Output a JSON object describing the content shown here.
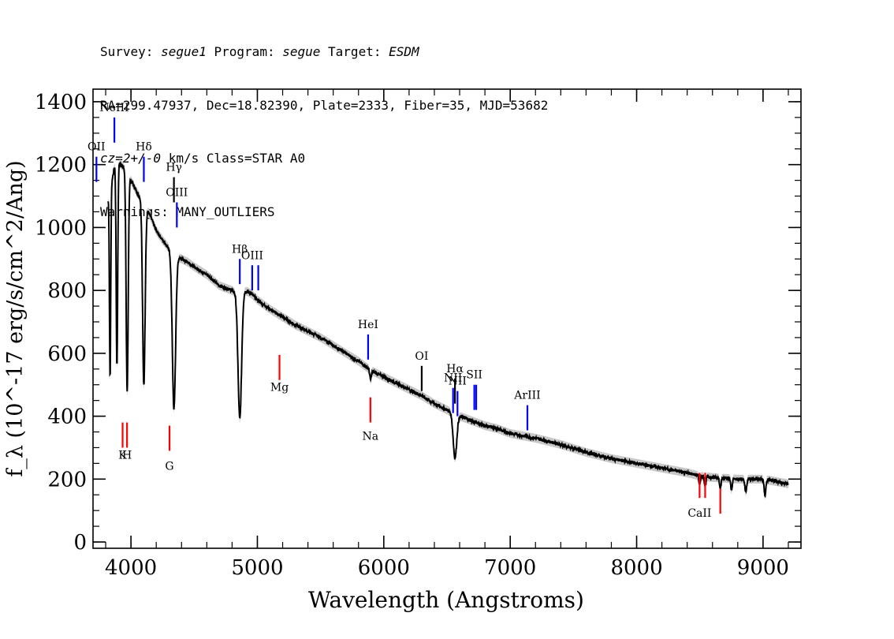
{
  "header": {
    "survey_label": "Survey:",
    "survey": "segue1",
    "program_label": "Program:",
    "program": "segue",
    "target_label": "Target:",
    "target": "ESDM",
    "line2": "RA=299.47937, Dec=18.82390, Plate=2333, Fiber=35, MJD=53682",
    "cz": "cz=2+/-0",
    "line3_rest": " km/s Class=STAR A0",
    "line4": "Warnings: MANY_OUTLIERS"
  },
  "chart_data": {
    "type": "line",
    "xlabel": "Wavelength (Angstroms)",
    "ylabel": "f_λ (10^-17 erg/s/cm^2/Ang)",
    "xlim": [
      3700,
      9300
    ],
    "ylim": [
      -20,
      1440
    ],
    "x_ticks": [
      4000,
      5000,
      6000,
      7000,
      8000,
      9000
    ],
    "y_ticks": [
      0,
      200,
      400,
      600,
      800,
      1000,
      1200,
      1400
    ],
    "grid": false,
    "series": [
      {
        "continuum": [
          [
            3820,
            1090
          ],
          [
            3850,
            1150
          ],
          [
            3880,
            1215
          ],
          [
            3920,
            1200
          ],
          [
            3950,
            1190
          ],
          [
            4000,
            1150
          ],
          [
            4050,
            1110
          ],
          [
            4100,
            1080
          ],
          [
            4150,
            1040
          ],
          [
            4200,
            990
          ],
          [
            4250,
            960
          ],
          [
            4300,
            935
          ],
          [
            4350,
            910
          ],
          [
            4400,
            900
          ],
          [
            4450,
            890
          ],
          [
            4500,
            875
          ],
          [
            4600,
            850
          ],
          [
            4700,
            815
          ],
          [
            4800,
            800
          ],
          [
            4850,
            790
          ],
          [
            4900,
            800
          ],
          [
            4950,
            790
          ],
          [
            5000,
            770
          ],
          [
            5100,
            740
          ],
          [
            5200,
            715
          ],
          [
            5300,
            690
          ],
          [
            5400,
            670
          ],
          [
            5500,
            650
          ],
          [
            5600,
            625
          ],
          [
            5700,
            600
          ],
          [
            5800,
            575
          ],
          [
            5900,
            545
          ],
          [
            6000,
            525
          ],
          [
            6100,
            505
          ],
          [
            6200,
            485
          ],
          [
            6300,
            465
          ],
          [
            6400,
            440
          ],
          [
            6500,
            420
          ],
          [
            6600,
            400
          ],
          [
            6700,
            385
          ],
          [
            6800,
            370
          ],
          [
            6900,
            360
          ],
          [
            7000,
            345
          ],
          [
            7200,
            330
          ],
          [
            7400,
            310
          ],
          [
            7600,
            285
          ],
          [
            7800,
            265
          ],
          [
            8000,
            250
          ],
          [
            8200,
            235
          ],
          [
            8400,
            220
          ],
          [
            8500,
            210
          ],
          [
            8600,
            205
          ],
          [
            8800,
            200
          ],
          [
            9000,
            200
          ],
          [
            9200,
            185
          ]
        ],
        "absorption_lines": [
          {
            "center": 3835,
            "depth": 600,
            "width": 5
          },
          {
            "center": 3889,
            "depth": 650,
            "width": 6
          },
          {
            "center": 3970,
            "depth": 700,
            "width": 8
          },
          {
            "center": 4102,
            "depth": 580,
            "width": 10
          },
          {
            "center": 4340,
            "depth": 490,
            "width": 13
          },
          {
            "center": 4861,
            "depth": 400,
            "width": 14
          },
          {
            "center": 5895,
            "depth": 30,
            "width": 6
          },
          {
            "center": 6563,
            "depth": 140,
            "width": 14
          },
          {
            "center": 8498,
            "depth": 25,
            "width": 6
          },
          {
            "center": 8542,
            "depth": 30,
            "width": 6
          },
          {
            "center": 8662,
            "depth": 30,
            "width": 6
          },
          {
            "center": 8750,
            "depth": 35,
            "width": 6
          },
          {
            "center": 8863,
            "depth": 40,
            "width": 7
          },
          {
            "center": 9015,
            "depth": 50,
            "width": 7
          }
        ]
      }
    ],
    "emission_lines": [
      {
        "label": "OII",
        "x": 3727,
        "y0": 1145,
        "y1": 1225,
        "color": "#0000ff",
        "label_y": 1245
      },
      {
        "label": "NeIII",
        "x": 3869,
        "y0": 1270,
        "y1": 1350,
        "color": "#0000ff",
        "label_y": 1370
      },
      {
        "label": "Hδ",
        "x": 4102,
        "y0": 1145,
        "y1": 1225,
        "color": "#0000ff",
        "label_y": 1245
      },
      {
        "label": "Hγ",
        "x": 4340,
        "y0": 1080,
        "y1": 1160,
        "color": "#000000",
        "label_y": 1180
      },
      {
        "label": "OIII",
        "x": 4363,
        "y0": 1000,
        "y1": 1080,
        "color": "#0000ff",
        "label_y": 1100
      },
      {
        "label": "Hβ",
        "x": 4861,
        "y0": 820,
        "y1": 900,
        "color": "#0000ff",
        "label_y": 920
      },
      {
        "label": "OIII",
        "x": 4959,
        "y0": 800,
        "y1": 880,
        "color": "#0000ff",
        "label_y": 900
      },
      {
        "label": "",
        "x": 5007,
        "y0": 800,
        "y1": 880,
        "color": "#0000ff",
        "label_y": 0
      },
      {
        "label": "HeI",
        "x": 5876,
        "y0": 580,
        "y1": 660,
        "color": "#0000ff",
        "label_y": 680
      },
      {
        "label": "OI",
        "x": 6300,
        "y0": 480,
        "y1": 560,
        "color": "#000000",
        "label_y": 580
      },
      {
        "label": "NII",
        "x": 6548,
        "y0": 410,
        "y1": 490,
        "color": "#0000ff",
        "label_y": 510
      },
      {
        "label": "Hα",
        "x": 6563,
        "y0": 440,
        "y1": 520,
        "color": "#000000",
        "label_y": 540
      },
      {
        "label": "NII",
        "x": 6583,
        "y0": 400,
        "y1": 480,
        "color": "#0000ff",
        "label_y": 500
      },
      {
        "label": "SII",
        "x": 6716,
        "y0": 420,
        "y1": 500,
        "color": "#0000ff",
        "label_y": 520
      },
      {
        "label": "",
        "x": 6731,
        "y0": 420,
        "y1": 500,
        "color": "#0000ff",
        "label_y": 0
      },
      {
        "label": "ArIII",
        "x": 7136,
        "y0": 355,
        "y1": 435,
        "color": "#0000ff",
        "label_y": 455
      }
    ],
    "sky_absorption_lines": [
      {
        "label": "K",
        "x": 3934,
        "y0": 300,
        "y1": 380,
        "color": "#ff0000",
        "label_y": 265
      },
      {
        "label": "H",
        "x": 3969,
        "y0": 300,
        "y1": 380,
        "color": "#ff0000",
        "label_y": 265
      },
      {
        "label": "G",
        "x": 4305,
        "y0": 290,
        "y1": 370,
        "color": "#ff0000",
        "label_y": 230
      },
      {
        "label": "Mg",
        "x": 5175,
        "y0": 515,
        "y1": 595,
        "color": "#ff0000",
        "label_y": 480
      },
      {
        "label": "Na",
        "x": 5894,
        "y0": 380,
        "y1": 460,
        "color": "#ff0000",
        "label_y": 325
      },
      {
        "label": "CaII",
        "x": 8498,
        "y0": 140,
        "y1": 220,
        "color": "#ff0000",
        "label_y": 80
      },
      {
        "label": "",
        "x": 8542,
        "y0": 140,
        "y1": 220,
        "color": "#ff0000",
        "label_y": 0
      },
      {
        "label": "",
        "x": 8662,
        "y0": 90,
        "y1": 170,
        "color": "#ff0000",
        "label_y": 0
      }
    ]
  }
}
